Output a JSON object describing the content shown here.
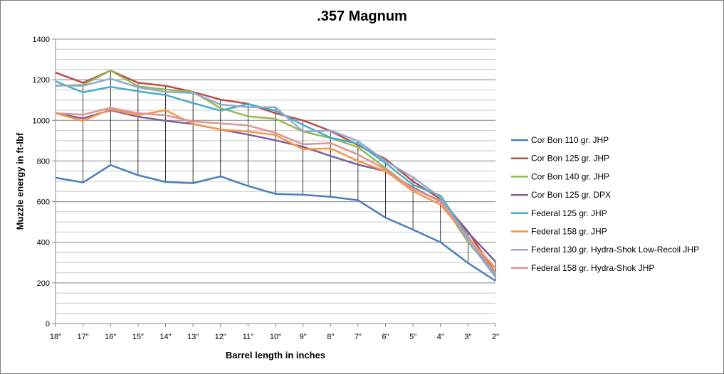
{
  "chart_data": {
    "type": "line",
    "title": ".357 Magnum",
    "xlabel": "Barrel length in inches",
    "ylabel": "Muzzle energy in ft-lbf",
    "categories": [
      "18\"",
      "17\"",
      "16\"",
      "15\"",
      "14\"",
      "13\"",
      "12\"",
      "11\"",
      "10\"",
      "9\"",
      "8\"",
      "7\"",
      "6\"",
      "5\"",
      "4\"",
      "3\"",
      "2\""
    ],
    "ylim": [
      0,
      1400
    ],
    "yticks": [
      0,
      200,
      400,
      600,
      800,
      1000,
      1200,
      1400
    ],
    "grid": true,
    "minor_grid_step": 50,
    "drop_lines": true,
    "legend_position": "right",
    "series": [
      {
        "name": "Cor Bon 110 gr. JHP",
        "color": "#4a7ebb",
        "values": [
          718,
          694,
          780,
          730,
          697,
          691,
          724,
          677,
          638,
          634,
          624,
          607,
          521,
          462,
          400,
          298,
          210
        ]
      },
      {
        "name": "Cor Bon 125 gr. JHP",
        "color": "#be4b48",
        "values": [
          1235,
          1185,
          1245,
          1185,
          1170,
          1140,
          1102,
          1082,
          1035,
          1000,
          948,
          878,
          810,
          700,
          613,
          453,
          250
        ]
      },
      {
        "name": "Cor Bon 140 gr. JHP",
        "color": "#98b954",
        "values": [
          1170,
          1175,
          1245,
          1168,
          1152,
          1140,
          1060,
          1020,
          1008,
          945,
          913,
          868,
          765,
          662,
          605,
          400,
          242
        ]
      },
      {
        "name": "Cor Bon 125 gr. DPX",
        "color": "#7d60a0",
        "values": [
          1035,
          1010,
          1050,
          1018,
          998,
          982,
          955,
          930,
          902,
          870,
          825,
          782,
          750,
          670,
          600,
          448,
          305
        ]
      },
      {
        "name": "Federal 125 gr. JHP",
        "color": "#4bacc6",
        "values": [
          1192,
          1138,
          1165,
          1143,
          1125,
          1085,
          1048,
          1080,
          1048,
          978,
          915,
          885,
          790,
          683,
          630,
          430,
          232
        ]
      },
      {
        "name": "Federal 158 gr. JHP",
        "color": "#f79646",
        "values": [
          1035,
          998,
          1055,
          1025,
          1050,
          983,
          955,
          945,
          928,
          858,
          862,
          800,
          750,
          652,
          585,
          425,
          272
        ]
      },
      {
        "name": "Federal 130 gr. Hydra-Shok Low-Recoil JHP",
        "color": "#93a9cf",
        "values": [
          1172,
          1170,
          1205,
          1163,
          1140,
          1135,
          1078,
          1065,
          1065,
          945,
          950,
          898,
          800,
          720,
          620,
          410,
          228
        ]
      },
      {
        "name": "Federal 158 gr. Hydra-Shok JHP",
        "color": "#d99694",
        "values": [
          1035,
          1028,
          1062,
          1035,
          1025,
          995,
          985,
          975,
          938,
          882,
          888,
          832,
          758,
          665,
          600,
          425,
          248
        ]
      }
    ]
  }
}
